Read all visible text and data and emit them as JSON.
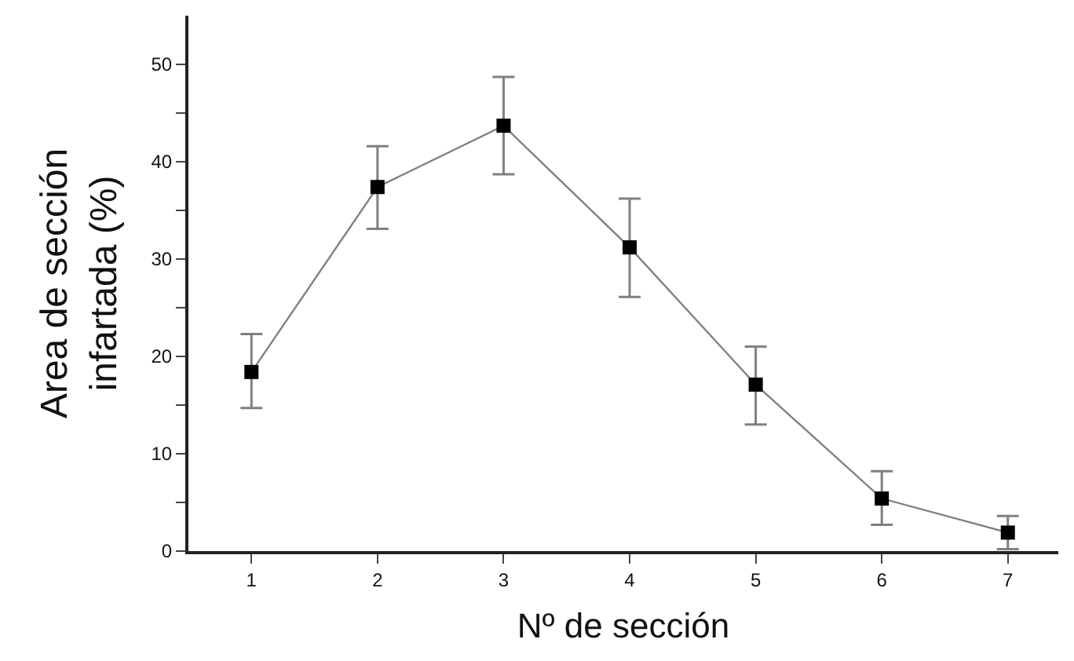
{
  "chart_data": {
    "type": "line",
    "xlabel": "Nº de sección",
    "ylabel": "Area de sección infartada (%)",
    "x": [
      1,
      2,
      3,
      4,
      5,
      6,
      7
    ],
    "series": [
      {
        "color": "#000000",
        "values": [
          18.4,
          37.4,
          43.7,
          31.2,
          17.1,
          5.4,
          1.9
        ],
        "errors": [
          [
            14.7,
            22.3
          ],
          [
            33.1,
            41.6
          ],
          [
            38.7,
            48.7
          ],
          [
            26.1,
            36.2
          ],
          [
            13.0,
            21.0
          ],
          [
            2.7,
            8.2
          ],
          [
            0.2,
            3.6
          ]
        ]
      }
    ],
    "xlim": [
      0.5,
      7.4
    ],
    "xticks": [
      1,
      2,
      3,
      4,
      5,
      6,
      7
    ],
    "ylim": [
      0,
      55
    ],
    "yticks": [
      0,
      {
        "value": 5,
        "label": null
      },
      10,
      {
        "value": 15,
        "label": null
      },
      20,
      {
        "value": 25,
        "label": null
      },
      30,
      {
        "value": 35,
        "label": null
      },
      40,
      {
        "value": 45,
        "label": null
      },
      50
    ],
    "marker": "square",
    "line_style": "solid"
  }
}
